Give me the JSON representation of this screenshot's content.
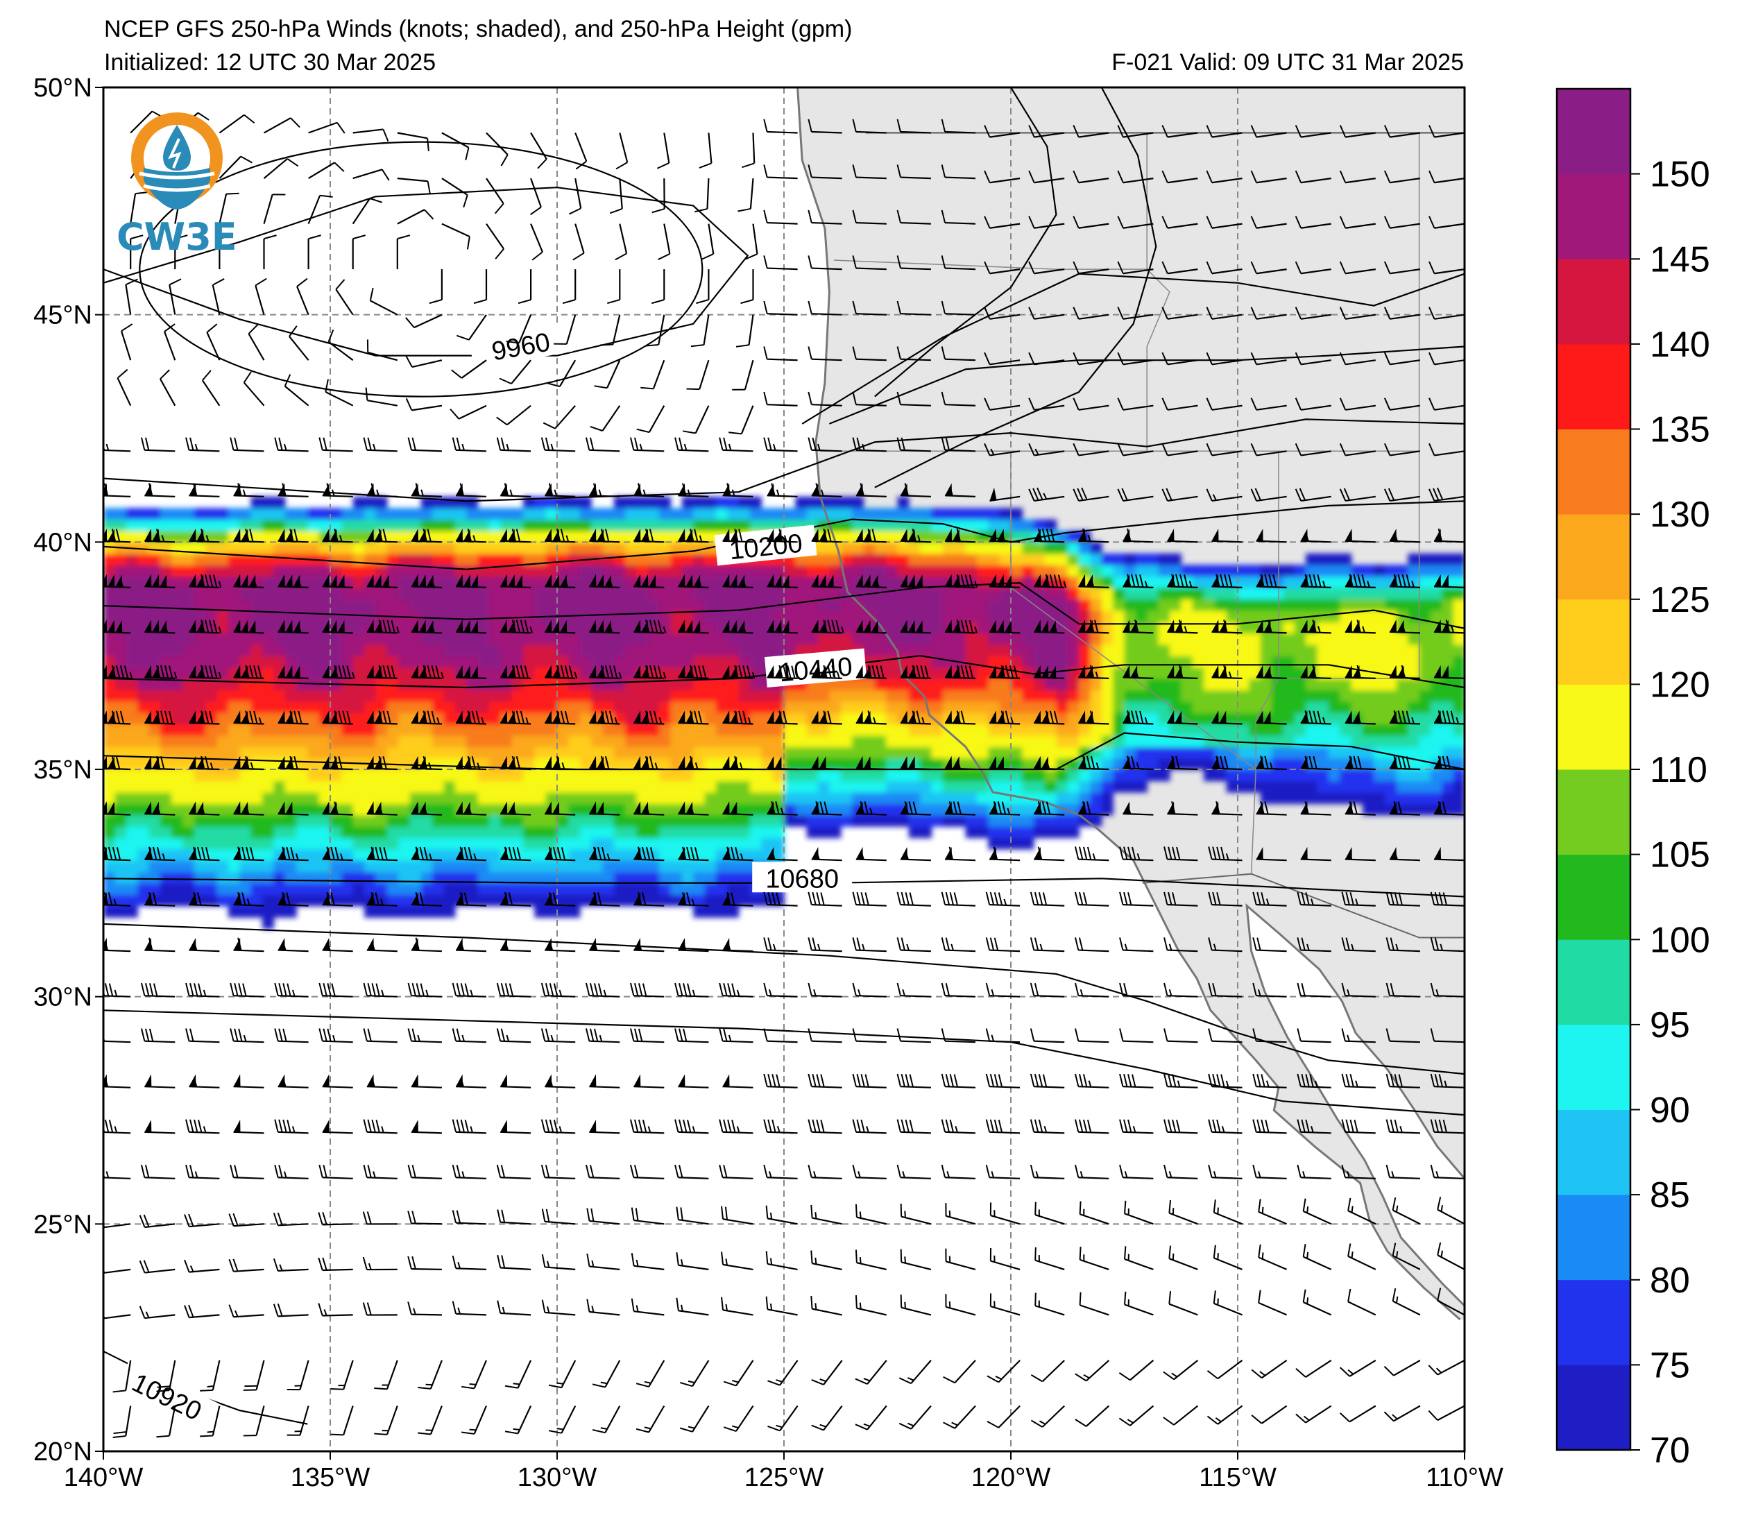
{
  "title": {
    "line1": "NCEP GFS 250-hPa Winds (knots; shaded), and 250-hPa Height (gpm)",
    "initialized": "Initialized: 12 UTC 30 Mar 2025",
    "valid": "F-021  Valid: 09 UTC 31 Mar 2025"
  },
  "logo": {
    "text": "CW3E",
    "icon": "water-drop-logo-icon",
    "ring_color": "#f0941f",
    "wave_color": "#2a8ab8"
  },
  "map": {
    "lon_range": [
      -140,
      -110
    ],
    "lat_range": [
      20,
      50
    ],
    "grid": true,
    "land_color": "#e6e6e6",
    "coast_color": "#777777"
  },
  "axes": {
    "x_ticks": [
      {
        "lon": -140,
        "label": "140°W"
      },
      {
        "lon": -135,
        "label": "135°W"
      },
      {
        "lon": -130,
        "label": "130°W"
      },
      {
        "lon": -125,
        "label": "125°W"
      },
      {
        "lon": -120,
        "label": "120°W"
      },
      {
        "lon": -115,
        "label": "115°W"
      },
      {
        "lon": -110,
        "label": "110°W"
      }
    ],
    "y_ticks": [
      {
        "lat": 50,
        "label": "50°N"
      },
      {
        "lat": 45,
        "label": "45°N"
      },
      {
        "lat": 40,
        "label": "40°N"
      },
      {
        "lat": 35,
        "label": "35°N"
      },
      {
        "lat": 30,
        "label": "30°N"
      },
      {
        "lat": 25,
        "label": "25°N"
      },
      {
        "lat": 20,
        "label": "20°N"
      }
    ]
  },
  "colorbar": {
    "levels": [
      70,
      75,
      80,
      85,
      90,
      95,
      100,
      105,
      110,
      120,
      125,
      130,
      135,
      140,
      145,
      150,
      155
    ],
    "labels": [
      "70",
      "75",
      "80",
      "85",
      "90",
      "95",
      "100",
      "105",
      "110",
      "120",
      "125",
      "130",
      "135",
      "140",
      "145",
      "150"
    ],
    "colors": [
      "#1f1ec4",
      "#2233ee",
      "#1a8af5",
      "#1fc4f4",
      "#1ff5f0",
      "#20dca4",
      "#22b91f",
      "#73cc1f",
      "#f8f819",
      "#ffcd1b",
      "#fba81c",
      "#f87c1e",
      "#ff1a1a",
      "#d5173f",
      "#a0187a",
      "#8b1e86"
    ]
  },
  "height_contours": [
    {
      "label": "9960",
      "value": 9960
    },
    {
      "label": "10200",
      "value": 10200
    },
    {
      "label": "10440",
      "value": 10440
    },
    {
      "label": "10680",
      "value": 10680
    },
    {
      "label": "10920",
      "value": 10920
    }
  ],
  "wind_field": {
    "jet_axis": [
      [
        -140,
        38.8
      ],
      [
        -130,
        38.9
      ],
      [
        -124,
        38.9
      ],
      [
        -121,
        38.8
      ],
      [
        -118.5,
        38.3
      ],
      [
        -116,
        38.0
      ],
      [
        -112,
        38.0
      ],
      [
        -110,
        38.2
      ]
    ],
    "max_speed_kt": 155,
    "jet_core_speed_kt": 150,
    "low_center": [
      -133,
      46
    ]
  }
}
